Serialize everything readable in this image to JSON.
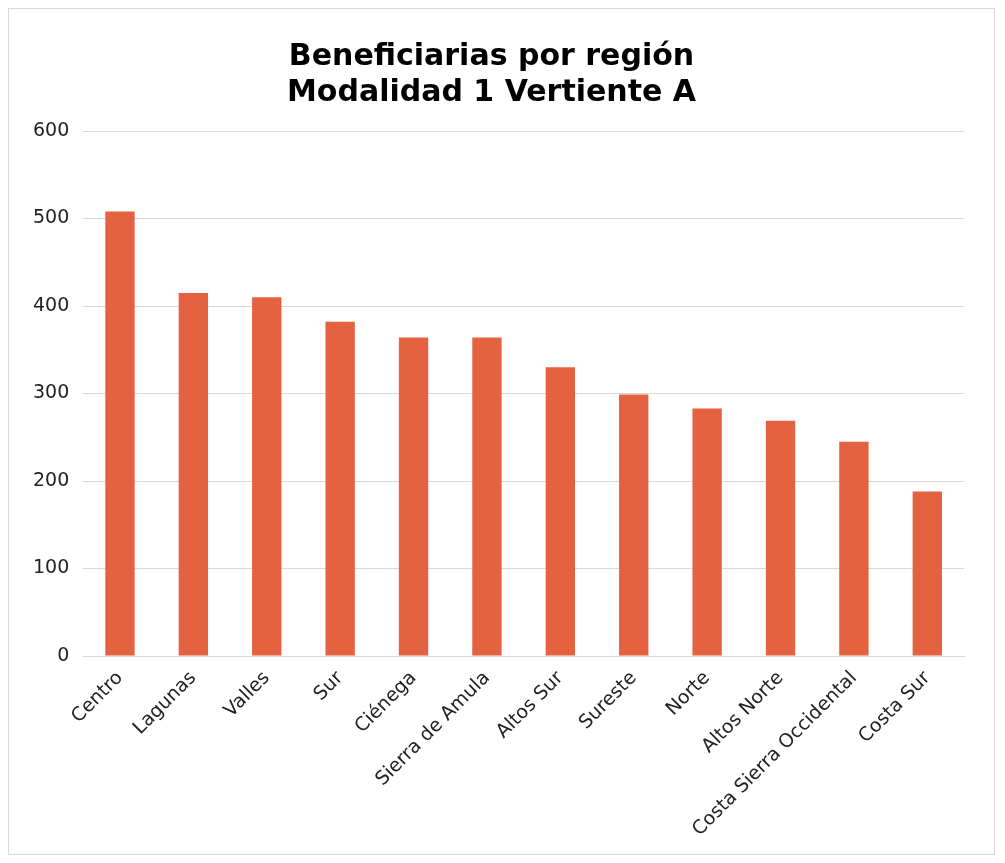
{
  "chart_data": {
    "type": "bar",
    "title": [
      "Beneficiarias por región",
      "Modalidad 1 Vertiente A"
    ],
    "categories": [
      "Centro",
      "Lagunas",
      "Valles",
      "Sur",
      "Ciénega",
      "Sierra de Amula",
      "Altos Sur",
      "Sureste",
      "Norte",
      "Altos Norte",
      "Costa Sierra Occidental",
      "Costa Sur"
    ],
    "values": [
      508,
      415,
      410,
      382,
      364,
      364,
      330,
      299,
      283,
      269,
      245,
      188
    ],
    "color": "#e4623f",
    "ylim": [
      0,
      600
    ],
    "yticks": [
      0,
      100,
      200,
      300,
      400,
      500,
      600
    ],
    "grid": "y",
    "legend": false
  }
}
